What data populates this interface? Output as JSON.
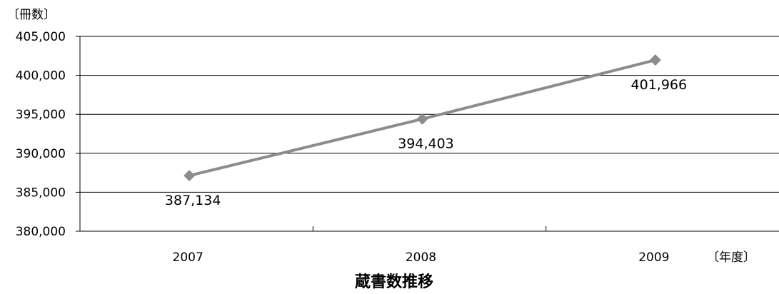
{
  "chart_data": {
    "type": "line",
    "title": "蔵書数推移",
    "ylabel": "〔冊数〕",
    "xlabel": "〔年度〕",
    "categories": [
      "2007",
      "2008",
      "2009"
    ],
    "series": [
      {
        "values": [
          387134,
          394403,
          401966
        ],
        "labels": [
          "387,134",
          "394,403",
          "401,966"
        ]
      }
    ],
    "ylim": [
      380000,
      405000
    ],
    "yticks": [
      380000,
      385000,
      390000,
      395000,
      400000,
      405000
    ],
    "ytick_labels": [
      "380,000",
      "385,000",
      "390,000",
      "395,000",
      "400,000",
      "405,000"
    ],
    "grid": true,
    "legend": "none",
    "colors": {
      "line": "#8c8c8c",
      "marker": "#8c8c8c",
      "grid": "#000000",
      "axis": "#000000"
    }
  }
}
